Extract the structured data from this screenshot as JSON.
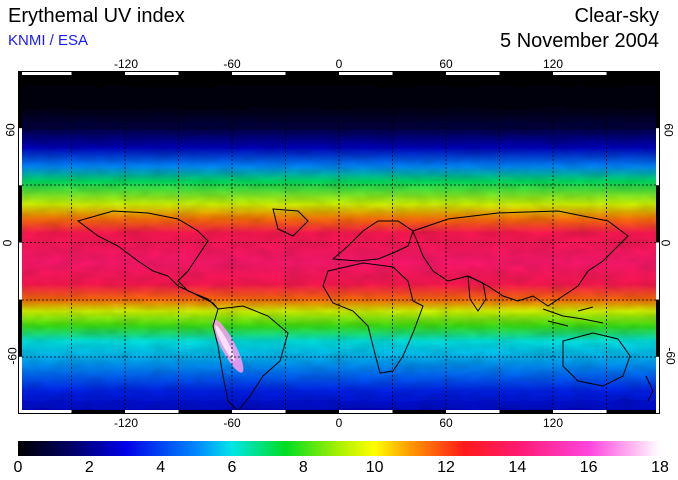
{
  "header": {
    "title": "Erythemal UV index",
    "credit": "KNMI / ESA",
    "mode": "Clear-sky",
    "date": "5 November 2004"
  },
  "map": {
    "projection": "equirectangular",
    "grid": true,
    "lon_ticks": [
      "-120",
      "-60",
      "0",
      "60",
      "120"
    ],
    "lat_ticks": [
      "60",
      "0",
      "-60"
    ],
    "lon_tick_values": [
      -120,
      -60,
      0,
      60,
      120
    ],
    "lat_tick_values": [
      60,
      0,
      -60
    ],
    "lon_range": [
      -180,
      180
    ],
    "lat_range": [
      -90,
      90
    ],
    "uv_profile_by_latitude": [
      {
        "lat": 90,
        "uv": 0
      },
      {
        "lat": 70,
        "uv": 0.3
      },
      {
        "lat": 60,
        "uv": 1
      },
      {
        "lat": 50,
        "uv": 2.5
      },
      {
        "lat": 40,
        "uv": 5
      },
      {
        "lat": 32,
        "uv": 7
      },
      {
        "lat": 20,
        "uv": 9.5
      },
      {
        "lat": 12,
        "uv": 11.5
      },
      {
        "lat": 5,
        "uv": 13.5
      },
      {
        "lat": -10,
        "uv": 14
      },
      {
        "lat": -22,
        "uv": 13.5
      },
      {
        "lat": -30,
        "uv": 11.5
      },
      {
        "lat": -36,
        "uv": 9.5
      },
      {
        "lat": -44,
        "uv": 8
      },
      {
        "lat": -52,
        "uv": 6
      },
      {
        "lat": -60,
        "uv": 5.5
      },
      {
        "lat": -70,
        "uv": 4.5
      },
      {
        "lat": -78,
        "uv": 3.5
      },
      {
        "lat": -90,
        "uv": 2.5
      }
    ]
  },
  "colorbar": {
    "labels": [
      "0",
      "2",
      "4",
      "6",
      "8",
      "10",
      "12",
      "14",
      "16",
      "18"
    ],
    "range": [
      0,
      18
    ],
    "stops": [
      {
        "v": 0,
        "c": "#000000"
      },
      {
        "v": 1.5,
        "c": "#000066"
      },
      {
        "v": 3,
        "c": "#0000e6"
      },
      {
        "v": 5,
        "c": "#0088ff"
      },
      {
        "v": 6,
        "c": "#00e6e6"
      },
      {
        "v": 7.5,
        "c": "#00dd22"
      },
      {
        "v": 9,
        "c": "#aaf000"
      },
      {
        "v": 10,
        "c": "#ffff00"
      },
      {
        "v": 11,
        "c": "#ff9900"
      },
      {
        "v": 12.5,
        "c": "#ff1a1a"
      },
      {
        "v": 14,
        "c": "#ff1a6e"
      },
      {
        "v": 16,
        "c": "#ff44dd"
      },
      {
        "v": 18,
        "c": "#ffffff"
      }
    ]
  }
}
